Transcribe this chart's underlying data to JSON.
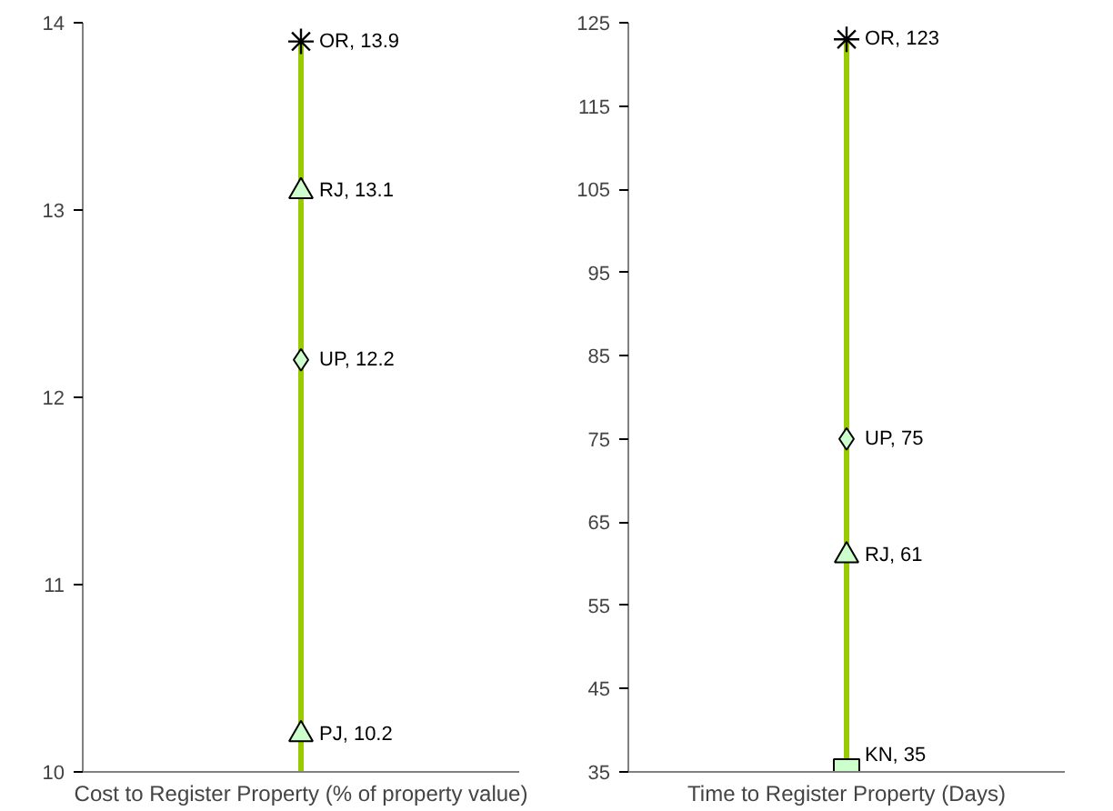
{
  "chart_data": [
    {
      "type": "scatter",
      "xlabel": "Cost to Register Property (% of property value)",
      "categories": [
        null
      ],
      "ylim": [
        10,
        14
      ],
      "yticks": [
        10,
        11,
        12,
        13,
        14
      ],
      "tick_labels": "y",
      "series": [
        {
          "type": "line",
          "color": "#99cc00",
          "x": [
            null,
            null
          ],
          "values": [
            10,
            13.9
          ],
          "marker": "none"
        },
        {
          "color": "#000000",
          "values": [
            13.9
          ],
          "marker": "cross",
          "value_labels": [
            "OR, 13.9"
          ]
        },
        {
          "color": "#ccffcc",
          "values": [
            13.1
          ],
          "marker": "triangle",
          "value_labels": [
            "RJ, 13.1"
          ]
        },
        {
          "color": "#ccffcc",
          "values": [
            12.2
          ],
          "marker": "diamond",
          "value_labels": [
            "UP, 12.2"
          ]
        },
        {
          "color": "#ccffcc",
          "values": [
            10.2
          ],
          "marker": "triangle",
          "value_labels": [
            "PJ, 10.2"
          ]
        }
      ]
    },
    {
      "type": "scatter",
      "xlabel": "Time to Register Property (Days)",
      "categories": [
        null
      ],
      "ylim": [
        35,
        125
      ],
      "yticks": [
        35,
        45,
        55,
        65,
        75,
        85,
        95,
        105,
        115,
        125
      ],
      "tick_labels": "y",
      "series": [
        {
          "type": "line",
          "color": "#99cc00",
          "x": [
            null,
            null
          ],
          "values": [
            35,
            123
          ],
          "marker": "none"
        },
        {
          "color": "#000000",
          "values": [
            123
          ],
          "marker": "cross",
          "value_labels": [
            "OR, 123"
          ]
        },
        {
          "color": "#ccffcc",
          "values": [
            75
          ],
          "marker": "diamond",
          "value_labels": [
            "UP, 75"
          ]
        },
        {
          "color": "#ccffcc",
          "values": [
            61
          ],
          "marker": "triangle",
          "value_labels": [
            "RJ, 61"
          ]
        },
        {
          "color": "#ccffcc",
          "values": [
            35
          ],
          "marker": "square",
          "value_labels": [
            "KN, 35"
          ]
        }
      ]
    }
  ]
}
